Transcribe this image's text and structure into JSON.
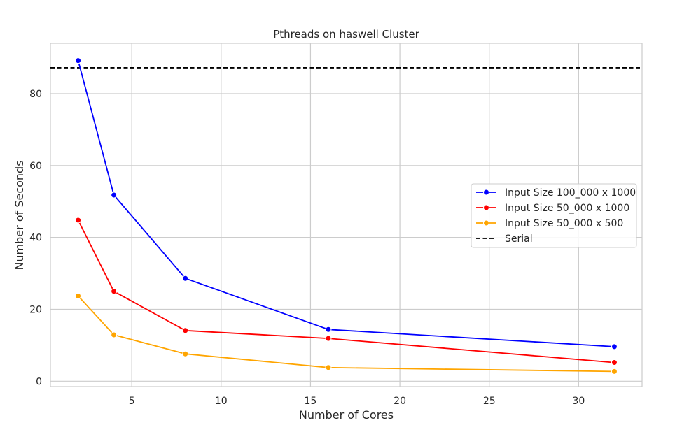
{
  "chart_data": {
    "type": "line",
    "title": "Pthreads on haswell Cluster",
    "xlabel": "Number of Cores",
    "ylabel": "Number of Seconds",
    "xlim": [
      0.45,
      33.55
    ],
    "ylim": [
      -1.5,
      94
    ],
    "xticks": [
      5,
      10,
      15,
      20,
      25,
      30
    ],
    "yticks": [
      0,
      20,
      40,
      60,
      80
    ],
    "grid": true,
    "legend_position": "center-right",
    "x": [
      2,
      4,
      8,
      16,
      32
    ],
    "series": [
      {
        "name": "Input Size 100_000 x 1000",
        "color": "#0000ff",
        "values": [
          89.2,
          51.8,
          28.6,
          14.4,
          9.6
        ]
      },
      {
        "name": "Input Size 50_000 x 1000",
        "color": "#ff0000",
        "values": [
          44.8,
          25.0,
          14.1,
          11.9,
          5.2
        ]
      },
      {
        "name": "Input Size 50_000 x 500",
        "color": "#ffa500",
        "values": [
          23.7,
          12.9,
          7.6,
          3.8,
          2.7
        ]
      }
    ],
    "reference_line": {
      "name": "Serial",
      "value": 87.2,
      "color": "#000000",
      "style": "dashed"
    }
  }
}
